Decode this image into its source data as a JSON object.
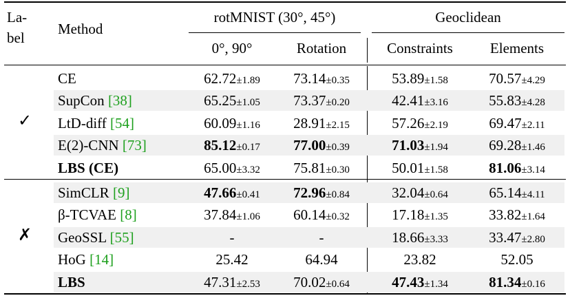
{
  "header": {
    "label_col": "La-\nbel",
    "method_col": "Method",
    "group1": "rotMNIST (30°, 45°)",
    "group2": "Geoclidean",
    "sub": [
      "0°, 90°",
      "Rotation",
      "Constraints",
      "Elements"
    ]
  },
  "marks": {
    "supervised": "✓",
    "unsupervised": "✗"
  },
  "groups": [
    {
      "rows": [
        {
          "method": "CE",
          "ref": "",
          "bold": false,
          "shade": false,
          "cells": [
            {
              "v": "62.72",
              "pm": "±1.89",
              "b": false
            },
            {
              "v": "73.14",
              "pm": "±0.35",
              "b": false
            },
            {
              "v": "53.89",
              "pm": "±1.58",
              "b": false
            },
            {
              "v": "70.57",
              "pm": "±4.29",
              "b": false
            }
          ]
        },
        {
          "method": "SupCon ",
          "ref": "[38]",
          "bold": false,
          "shade": true,
          "cells": [
            {
              "v": "65.25",
              "pm": "±1.05",
              "b": false
            },
            {
              "v": "73.37",
              "pm": "±0.20",
              "b": false
            },
            {
              "v": "42.41",
              "pm": "±3.16",
              "b": false
            },
            {
              "v": "55.83",
              "pm": "±4.28",
              "b": false
            }
          ]
        },
        {
          "method": "LtD-diff ",
          "ref": "[54]",
          "bold": false,
          "shade": false,
          "cells": [
            {
              "v": "60.09",
              "pm": "±1.16",
              "b": false
            },
            {
              "v": "28.91",
              "pm": "±2.15",
              "b": false
            },
            {
              "v": "57.26",
              "pm": "±2.19",
              "b": false
            },
            {
              "v": "69.47",
              "pm": "±2.11",
              "b": false
            }
          ]
        },
        {
          "method": "E(2)-CNN ",
          "ref": "[73]",
          "bold": false,
          "shade": true,
          "cells": [
            {
              "v": "85.12",
              "pm": "±0.17",
              "b": true
            },
            {
              "v": "77.00",
              "pm": "±0.39",
              "b": true
            },
            {
              "v": "71.03",
              "pm": "±1.94",
              "b": true
            },
            {
              "v": "69.28",
              "pm": "±1.46",
              "b": false
            }
          ]
        },
        {
          "method": "LBS (CE)",
          "ref": "",
          "bold": true,
          "shade": false,
          "cells": [
            {
              "v": "65.00",
              "pm": "±3.32",
              "b": false
            },
            {
              "v": "75.81",
              "pm": "±0.30",
              "b": false
            },
            {
              "v": "50.01",
              "pm": "±1.58",
              "b": false
            },
            {
              "v": "81.06",
              "pm": "±3.14",
              "b": true
            }
          ]
        }
      ]
    },
    {
      "rows": [
        {
          "method": "SimCLR ",
          "ref": "[9]",
          "bold": false,
          "shade": true,
          "cells": [
            {
              "v": "47.66",
              "pm": "±0.41",
              "b": true
            },
            {
              "v": "72.96",
              "pm": "±0.84",
              "b": true
            },
            {
              "v": "32.04",
              "pm": "±0.64",
              "b": false
            },
            {
              "v": "65.14",
              "pm": "±4.11",
              "b": false
            }
          ]
        },
        {
          "method": "β-TCVAE ",
          "ref": "[8]",
          "bold": false,
          "shade": false,
          "cells": [
            {
              "v": "37.84",
              "pm": "±1.06",
              "b": false
            },
            {
              "v": "60.14",
              "pm": "±0.32",
              "b": false
            },
            {
              "v": "17.18",
              "pm": "±1.35",
              "b": false
            },
            {
              "v": "33.82",
              "pm": "±1.64",
              "b": false
            }
          ]
        },
        {
          "method": "GeoSSL ",
          "ref": "[55]",
          "bold": false,
          "shade": true,
          "cells": [
            {
              "v": "-",
              "pm": "",
              "b": false
            },
            {
              "v": "-",
              "pm": "",
              "b": false
            },
            {
              "v": "18.66",
              "pm": "±3.33",
              "b": false
            },
            {
              "v": "33.47",
              "pm": "±2.80",
              "b": false
            }
          ]
        },
        {
          "method": "HoG ",
          "ref": "[14]",
          "bold": false,
          "shade": false,
          "cells": [
            {
              "v": "25.42",
              "pm": "",
              "b": false
            },
            {
              "v": "64.94",
              "pm": "",
              "b": false
            },
            {
              "v": "23.82",
              "pm": "",
              "b": false
            },
            {
              "v": "52.05",
              "pm": "",
              "b": false
            }
          ]
        },
        {
          "method": "LBS",
          "ref": "",
          "bold": true,
          "shade": true,
          "cells": [
            {
              "v": "47.31",
              "pm": "±2.53",
              "b": false
            },
            {
              "v": "70.02",
              "pm": "±0.64",
              "b": false
            },
            {
              "v": "47.43",
              "pm": "±1.34",
              "b": true
            },
            {
              "v": "81.34",
              "pm": "±0.16",
              "b": true
            }
          ]
        }
      ]
    }
  ]
}
